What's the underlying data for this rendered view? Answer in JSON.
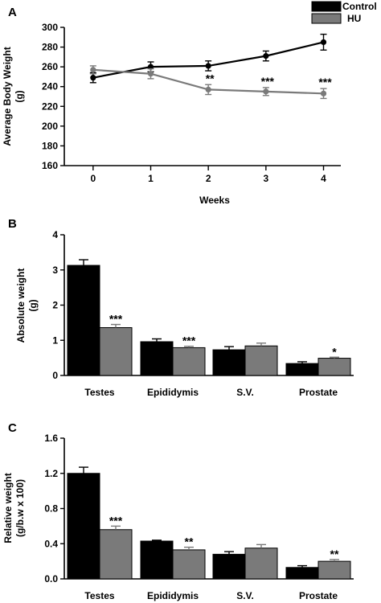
{
  "legend": {
    "entries": [
      {
        "label": "Control",
        "color": "#000000"
      },
      {
        "label": "HU",
        "color": "#7a7a7a"
      }
    ]
  },
  "chart_data": [
    {
      "panel": "A",
      "type": "line",
      "xlabel": "Weeks",
      "ylabel": "Average Body Weight (g)",
      "x": [
        0,
        1,
        2,
        3,
        4
      ],
      "xlim": [
        -0.5,
        4.3
      ],
      "ylim": [
        160,
        300
      ],
      "yticks": [
        160,
        180,
        200,
        220,
        240,
        260,
        280,
        300
      ],
      "series": [
        {
          "name": "Control",
          "color": "#000000",
          "values": [
            249,
            260,
            261,
            271,
            285
          ],
          "errors": [
            5,
            5,
            5,
            5,
            8
          ],
          "significance": [
            "",
            "",
            "",
            "",
            ""
          ]
        },
        {
          "name": "HU",
          "color": "#7a7a7a",
          "values": [
            257,
            253,
            237,
            235,
            233
          ],
          "errors": [
            4,
            5,
            5,
            4,
            5
          ],
          "significance": [
            "",
            "",
            "**",
            "***",
            "***"
          ]
        }
      ]
    },
    {
      "panel": "B",
      "type": "bar",
      "xlabel": "",
      "ylabel": "Absolute weight (g)",
      "categories": [
        "Testes",
        "Epididymis",
        "S.V.",
        "Prostate"
      ],
      "ylim": [
        0,
        4
      ],
      "yticks": [
        0,
        1,
        2,
        3,
        4
      ],
      "series": [
        {
          "name": "Control",
          "color": "#000000",
          "values": [
            3.13,
            0.96,
            0.73,
            0.34
          ],
          "errors": [
            0.16,
            0.08,
            0.09,
            0.05
          ],
          "significance": [
            "",
            "",
            "",
            ""
          ]
        },
        {
          "name": "HU",
          "color": "#7a7a7a",
          "values": [
            1.36,
            0.79,
            0.84,
            0.49
          ],
          "errors": [
            0.09,
            0.04,
            0.08,
            0.03
          ],
          "significance": [
            "***",
            "***",
            "",
            "*"
          ]
        }
      ]
    },
    {
      "panel": "C",
      "type": "bar",
      "xlabel": "",
      "ylabel": "Relative weight (g/b.w x 100)",
      "categories": [
        "Testes",
        "Epididymis",
        "S.V.",
        "Prostate"
      ],
      "ylim": [
        0,
        1.6
      ],
      "yticks": [
        0.0,
        0.4,
        0.8,
        1.2,
        1.6
      ],
      "series": [
        {
          "name": "Control",
          "color": "#000000",
          "values": [
            1.2,
            0.43,
            0.28,
            0.13
          ],
          "errors": [
            0.07,
            0.01,
            0.03,
            0.02
          ],
          "significance": [
            "",
            "",
            "",
            ""
          ]
        },
        {
          "name": "HU",
          "color": "#7a7a7a",
          "values": [
            0.56,
            0.33,
            0.35,
            0.2
          ],
          "errors": [
            0.04,
            0.03,
            0.04,
            0.02
          ],
          "significance": [
            "***",
            "**",
            "",
            "**"
          ]
        }
      ]
    }
  ]
}
